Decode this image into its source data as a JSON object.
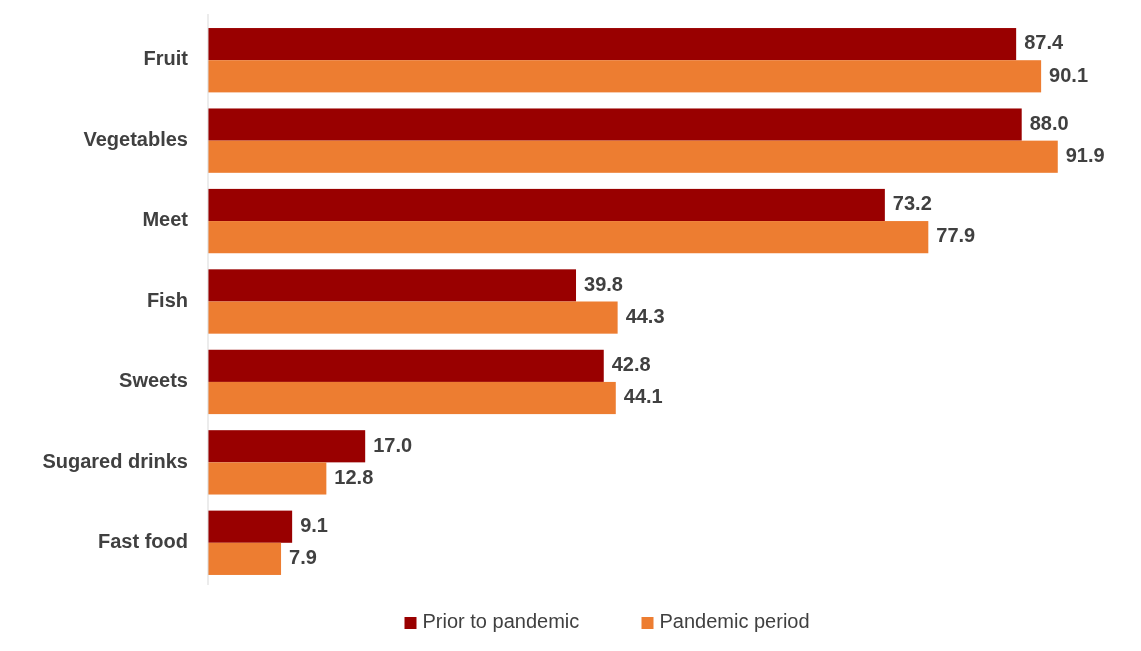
{
  "chart_data": {
    "type": "bar",
    "orientation": "horizontal",
    "categories": [
      "Fruit",
      "Vegetables",
      "Meet",
      "Fish",
      "Sweets",
      "Sugared drinks",
      "Fast food"
    ],
    "series": [
      {
        "name": "Prior to pandemic",
        "color": "#990000",
        "values": [
          87.4,
          88.0,
          73.2,
          39.8,
          42.8,
          17.0,
          9.1
        ],
        "value_labels": [
          "87.4",
          "88.0",
          "73.2",
          "39.8",
          "42.8",
          "17.0",
          "9.1"
        ]
      },
      {
        "name": "Pandemic period",
        "color": "#ed7d31",
        "values": [
          90.1,
          91.9,
          77.9,
          44.3,
          44.1,
          12.8,
          7.9
        ],
        "value_labels": [
          "90.1",
          "91.9",
          "77.9",
          "44.3",
          "44.1",
          "12.8",
          "7.9"
        ]
      }
    ],
    "legend": "bottom"
  }
}
